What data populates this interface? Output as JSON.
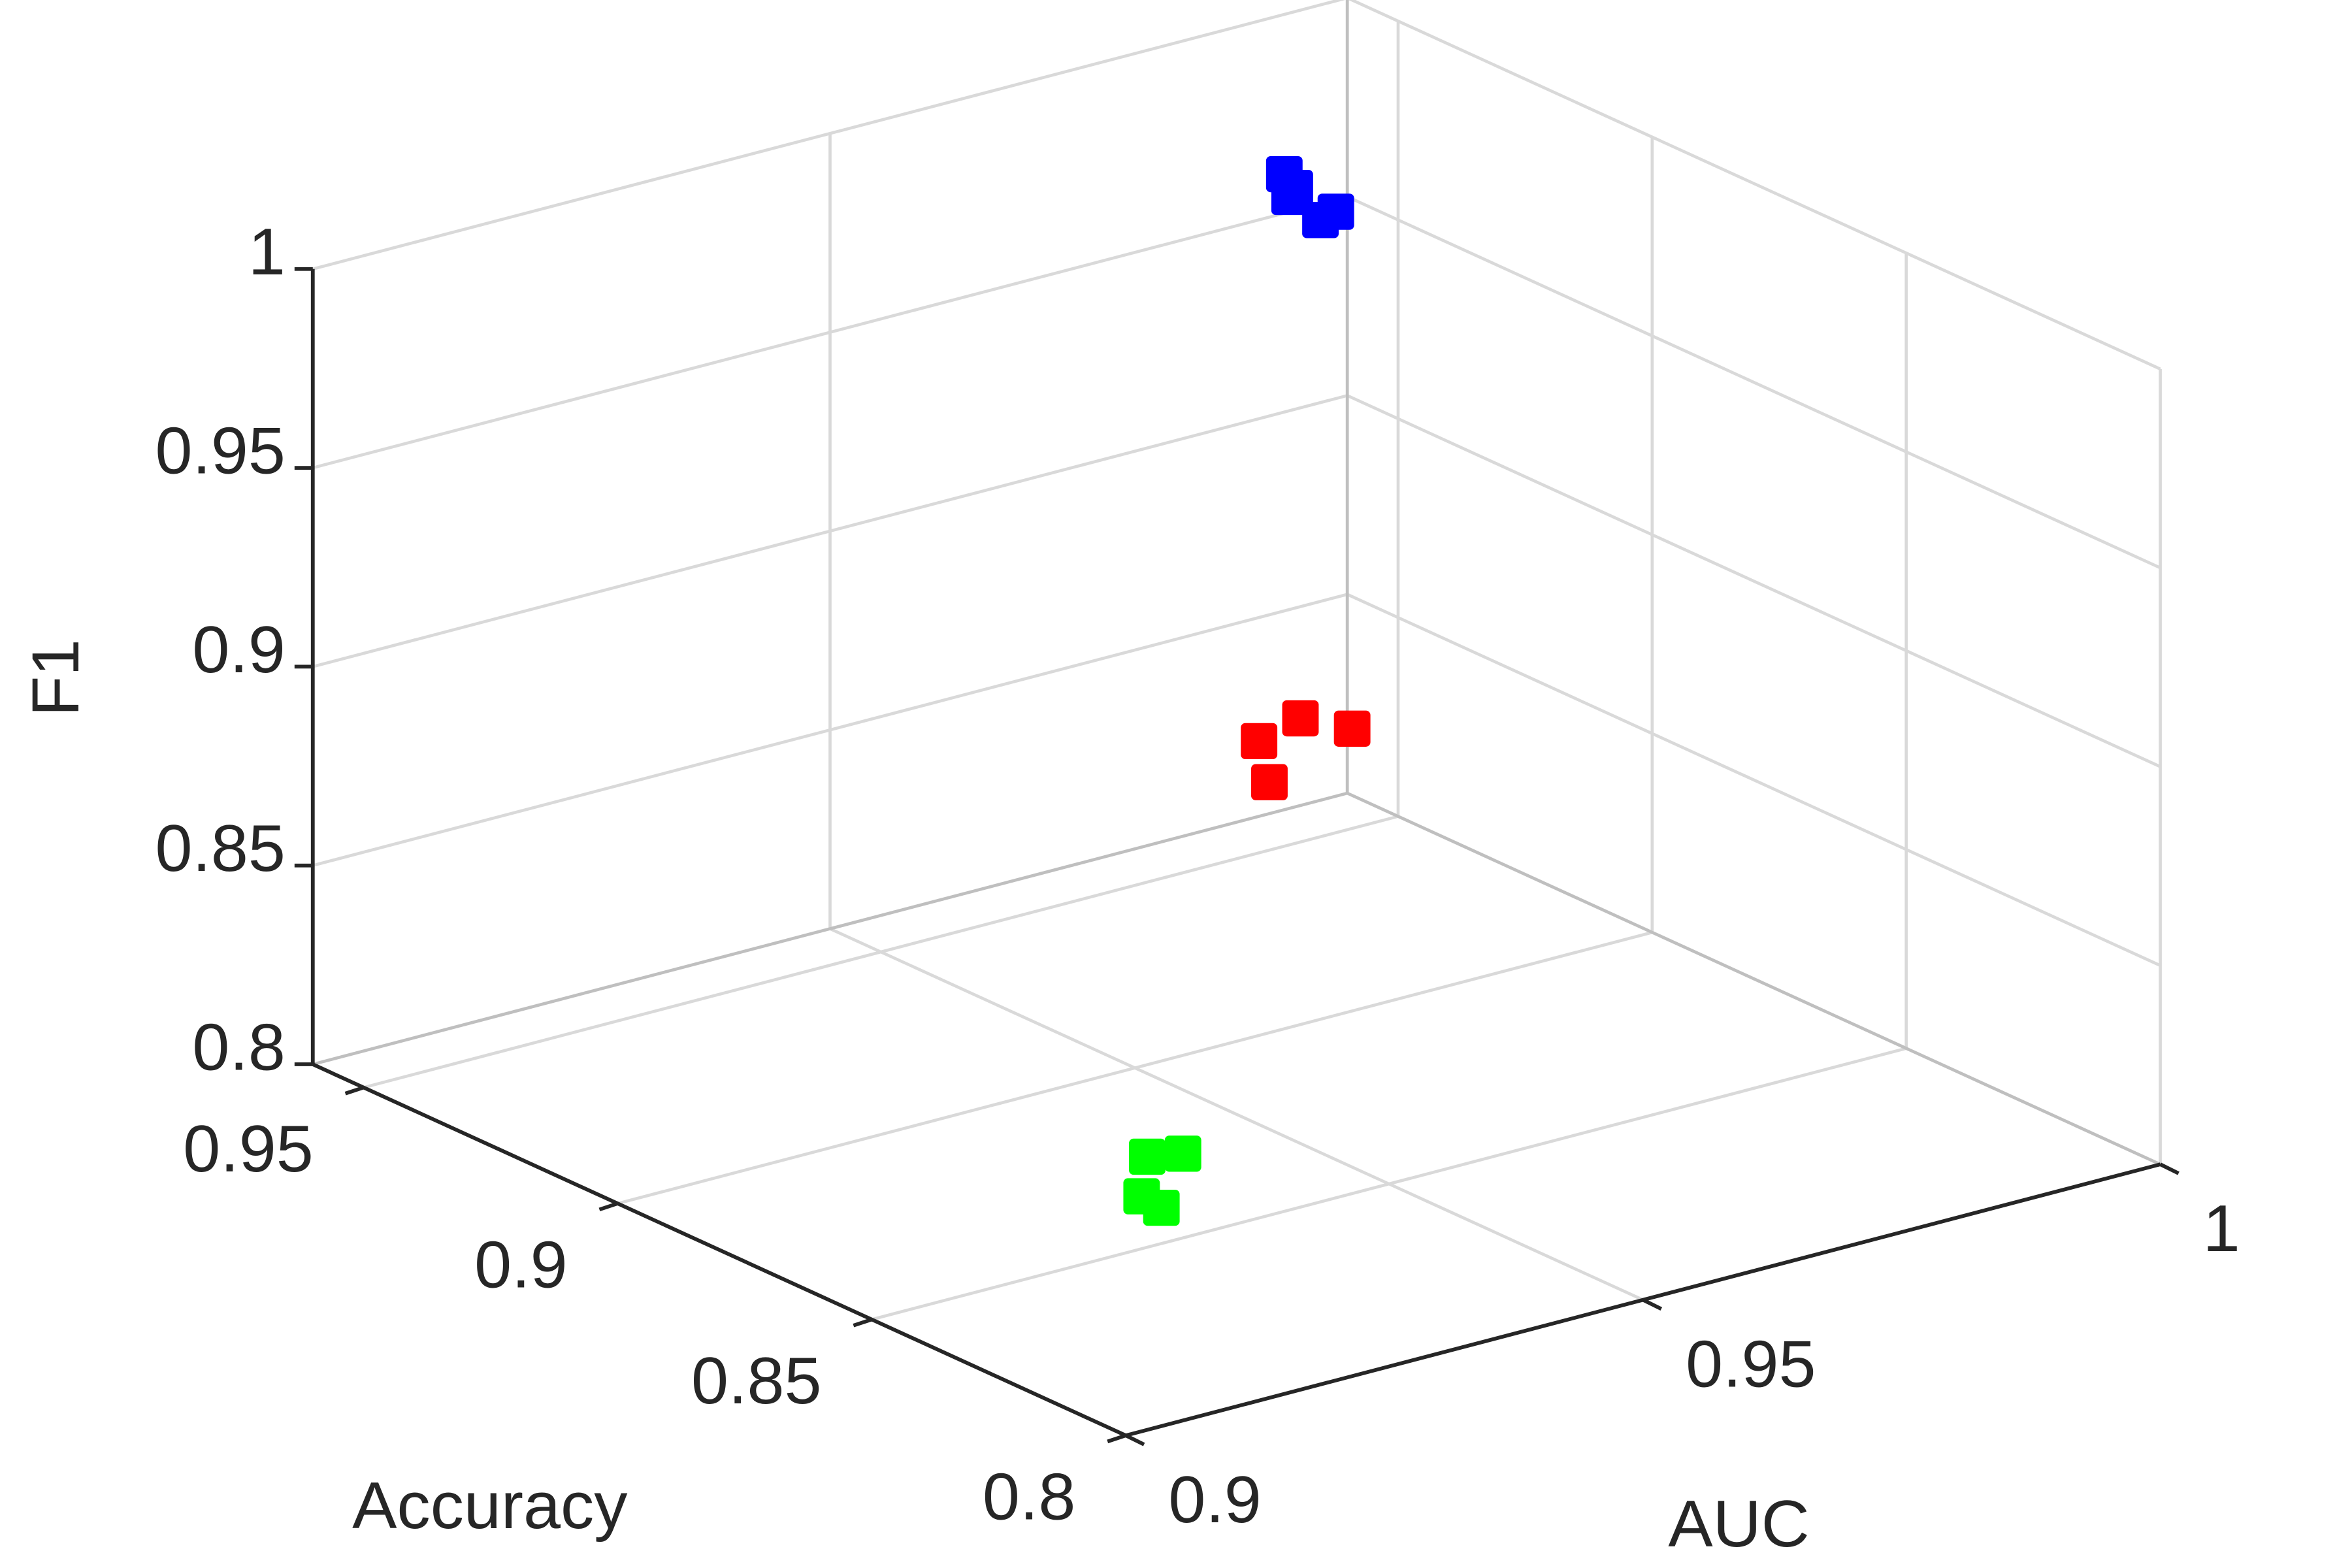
{
  "chart_data": {
    "type": "scatter3d",
    "xlabel": "Accuracy",
    "ylabel": "AUC",
    "zlabel": "F1",
    "xlim": [
      0.8,
      0.96
    ],
    "ylim": [
      0.9,
      1
    ],
    "zlim": [
      0.8,
      1
    ],
    "xticks": [
      0.8,
      0.85,
      0.9,
      0.95
    ],
    "yticks": [
      0.9,
      0.95,
      1
    ],
    "zticks": [
      0.8,
      0.85,
      0.9,
      0.95,
      1
    ],
    "grid": true,
    "series": [
      {
        "color": "#0000ff",
        "x": [
          0.95,
          0.952,
          0.948,
          0.951,
          0.949
        ],
        "y": [
          0.989,
          0.991,
          0.993,
          0.99,
          0.992
        ],
        "z": [
          0.969,
          0.963,
          0.958,
          0.962,
          0.956
        ]
      },
      {
        "color": "#ff0000",
        "x": [
          0.9,
          0.9,
          0.9,
          0.9
        ],
        "y": [
          0.962,
          0.966,
          0.963,
          0.971
        ],
        "z": [
          0.874,
          0.877,
          0.863,
          0.871
        ]
      },
      {
        "color": "#00ff00",
        "x": [
          0.85,
          0.86,
          0.86,
          0.865
        ],
        "y": [
          0.928,
          0.931,
          0.935,
          0.934
        ],
        "z": [
          0.809,
          0.804,
          0.812,
          0.809
        ]
      }
    ]
  }
}
